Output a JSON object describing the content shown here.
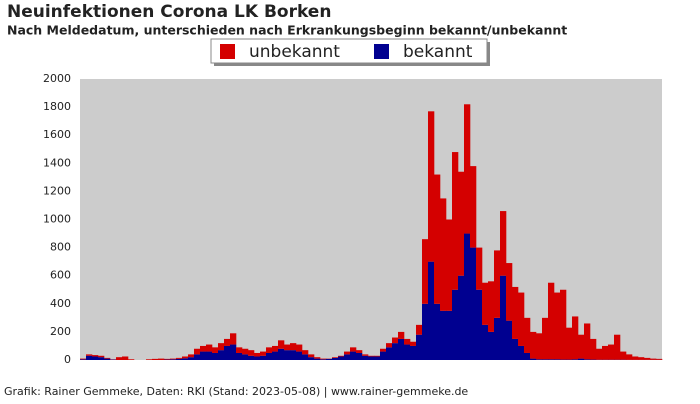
{
  "chart_data": {
    "type": "bar",
    "stacked": true,
    "title": "Neuinfektionen Corona LK Borken",
    "subtitle": "Nach Meldedatum, unterschieden nach Erkrankungsbeginn bekannt/unbekannt",
    "footer": "Grafik: Rainer Gemmeke, Daten: RKI (Stand: 2023-05-08) | www.rainer-gemmeke.de",
    "categories": [
      null,
      null,
      null,
      null,
      null,
      null,
      null,
      null,
      null,
      null,
      null,
      null,
      null,
      null,
      null,
      null,
      null,
      null,
      null,
      null,
      null,
      null,
      null,
      null,
      null,
      null,
      null,
      null,
      null,
      null,
      null,
      null,
      null,
      null,
      null,
      null,
      null,
      null,
      null,
      null,
      null,
      null,
      null,
      null,
      null,
      null,
      null,
      null,
      null,
      null,
      null,
      null,
      null,
      null,
      null,
      null,
      null,
      null,
      null,
      null,
      null,
      null,
      null,
      null,
      null,
      null,
      null,
      null,
      null,
      null,
      null,
      null,
      null,
      null,
      null,
      null,
      null,
      null,
      null,
      null,
      null,
      null,
      null,
      null,
      null,
      null,
      null,
      null,
      null,
      null,
      null,
      null,
      null,
      null,
      null,
      null,
      null
    ],
    "series": [
      {
        "name": "unbekannt",
        "color": "#d40000",
        "values": [
          5,
          10,
          10,
          10,
          5,
          2,
          20,
          25,
          5,
          0,
          0,
          5,
          8,
          10,
          5,
          5,
          7,
          13,
          20,
          40,
          40,
          50,
          40,
          50,
          50,
          80,
          40,
          40,
          40,
          25,
          30,
          40,
          40,
          60,
          40,
          50,
          50,
          30,
          20,
          10,
          5,
          2,
          5,
          5,
          20,
          30,
          20,
          10,
          5,
          5,
          20,
          30,
          40,
          50,
          40,
          30,
          70,
          460,
          1070,
          920,
          800,
          650,
          980,
          740,
          920,
          580,
          300,
          300,
          360,
          480,
          460,
          410,
          370,
          380,
          250,
          190,
          185,
          295,
          545,
          475,
          497,
          227,
          305,
          170,
          255,
          147,
          78,
          98,
          108,
          178,
          58,
          39,
          24,
          19,
          14,
          9,
          7
        ]
      },
      {
        "name": "bekannt",
        "color": "#000090",
        "values": [
          5,
          30,
          25,
          20,
          10,
          3,
          0,
          0,
          0,
          0,
          0,
          0,
          0,
          0,
          3,
          5,
          8,
          12,
          20,
          40,
          60,
          60,
          50,
          70,
          100,
          110,
          50,
          40,
          30,
          25,
          30,
          50,
          60,
          80,
          70,
          70,
          60,
          40,
          20,
          10,
          5,
          8,
          15,
          25,
          40,
          60,
          50,
          30,
          25,
          25,
          60,
          90,
          120,
          150,
          110,
          100,
          180,
          400,
          700,
          400,
          350,
          350,
          500,
          600,
          900,
          800,
          500,
          250,
          200,
          300,
          600,
          280,
          150,
          100,
          50,
          10,
          5,
          5,
          5,
          5,
          3,
          3,
          5,
          10,
          5,
          3,
          2,
          2,
          2,
          2,
          2,
          1,
          1,
          1,
          1,
          1,
          1
        ]
      }
    ],
    "ylim": [
      0,
      2000
    ],
    "yticks": [
      0,
      200,
      400,
      600,
      800,
      1000,
      1200,
      1400,
      1600,
      1800,
      2000
    ],
    "plot_background": "#cccccc"
  }
}
